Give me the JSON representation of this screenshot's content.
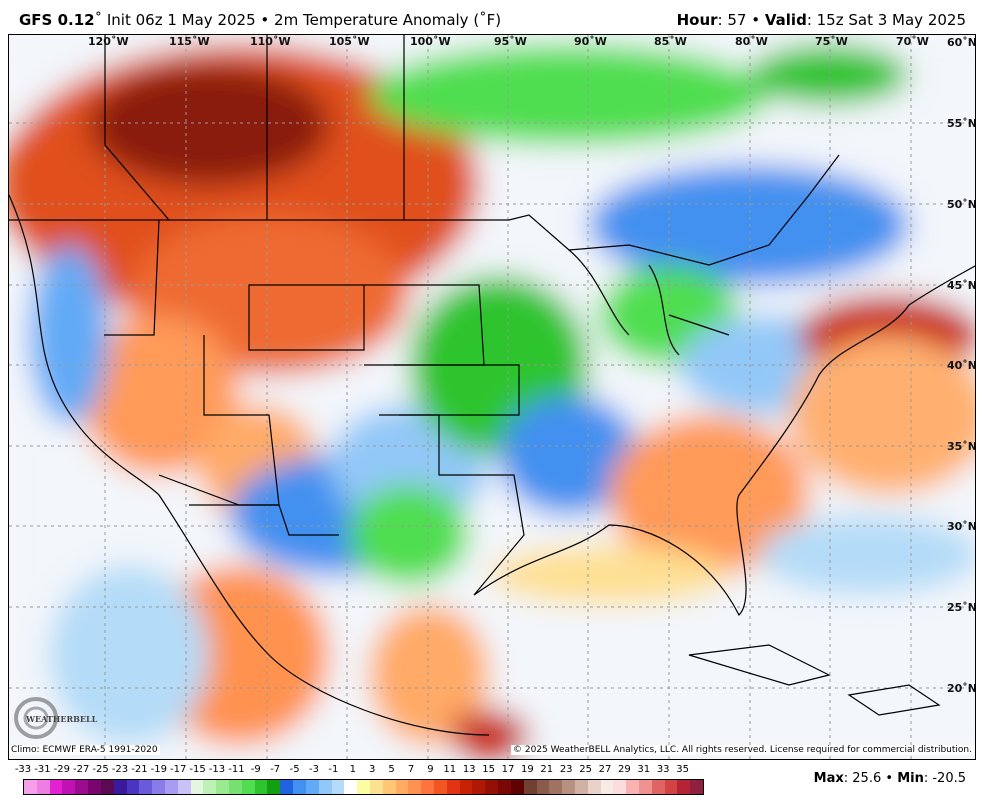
{
  "header": {
    "model": "GFS 0.12",
    "init": "Init 06z 1 May 2025",
    "separator": "•",
    "product": "2m Temperature Anomaly (˚F)",
    "hour_label": "Hour",
    "hour": "57",
    "valid_label": "Valid",
    "valid": "15z Sat 3 May 2025"
  },
  "map": {
    "lon_labels": [
      "120˚W",
      "115˚W",
      "110˚W",
      "105˚W",
      "100˚W",
      "95˚W",
      "90˚W",
      "85˚W",
      "80˚W",
      "75˚W",
      "70˚W"
    ],
    "lat_labels": [
      "60˚N",
      "55˚N",
      "50˚N",
      "45˚N",
      "40˚N",
      "35˚N",
      "30˚N",
      "25˚N",
      "20˚N"
    ],
    "logo": "WeatherBELL Analytics LLC"
  },
  "footer": {
    "climo": "Climo: ECMWF ERA-5 1991-2020",
    "copyright": "© 2025 WeatherBELL Analytics, LLC. All rights reserved. License required for commercial distribution.",
    "max_label": "Max",
    "max": "25.6",
    "min_label": "Min",
    "min": "-20.5"
  },
  "colorbar": {
    "labels": [
      "-33",
      "-31",
      "-29",
      "-27",
      "-25",
      "-23",
      "-21",
      "-19",
      "-17",
      "-15",
      "-13",
      "-11",
      "-9",
      "-7",
      "-5",
      "-3",
      "-1",
      "1",
      "3",
      "5",
      "7",
      "9",
      "11",
      "13",
      "15",
      "17",
      "19",
      "21",
      "23",
      "25",
      "27",
      "29",
      "31",
      "33",
      "35"
    ],
    "colors": [
      "#f4a0ea",
      "#ee7ee2",
      "#e222d2",
      "#c012b2",
      "#9c0c8e",
      "#7a0470",
      "#5a0a50",
      "#3a1a9c",
      "#4a34c0",
      "#6a5cd8",
      "#8a7ce8",
      "#a89cf0",
      "#c8c2f6",
      "#e4f6e0",
      "#bcf2b4",
      "#9aea90",
      "#78e070",
      "#50de50",
      "#2ec42e",
      "#12a012",
      "#2262e0",
      "#4290f0",
      "#62aaf6",
      "#92c8f8",
      "#b4dcf8",
      "#ffffff",
      "#fcfca2",
      "#fee092",
      "#ffc676",
      "#ffac62",
      "#ff9250",
      "#ff743e",
      "#f25422",
      "#e23412",
      "#c82204",
      "#ae1804",
      "#941006",
      "#7a0806",
      "#5e0202",
      "#704032",
      "#8a5a4a",
      "#a07262",
      "#b89080",
      "#d0b2a4",
      "#e8d2ca",
      "#f8eae4",
      "#fcdcdc",
      "#f8b2b2",
      "#f09292",
      "#e06464",
      "#d24444",
      "#b42434",
      "#902040"
    ]
  }
}
